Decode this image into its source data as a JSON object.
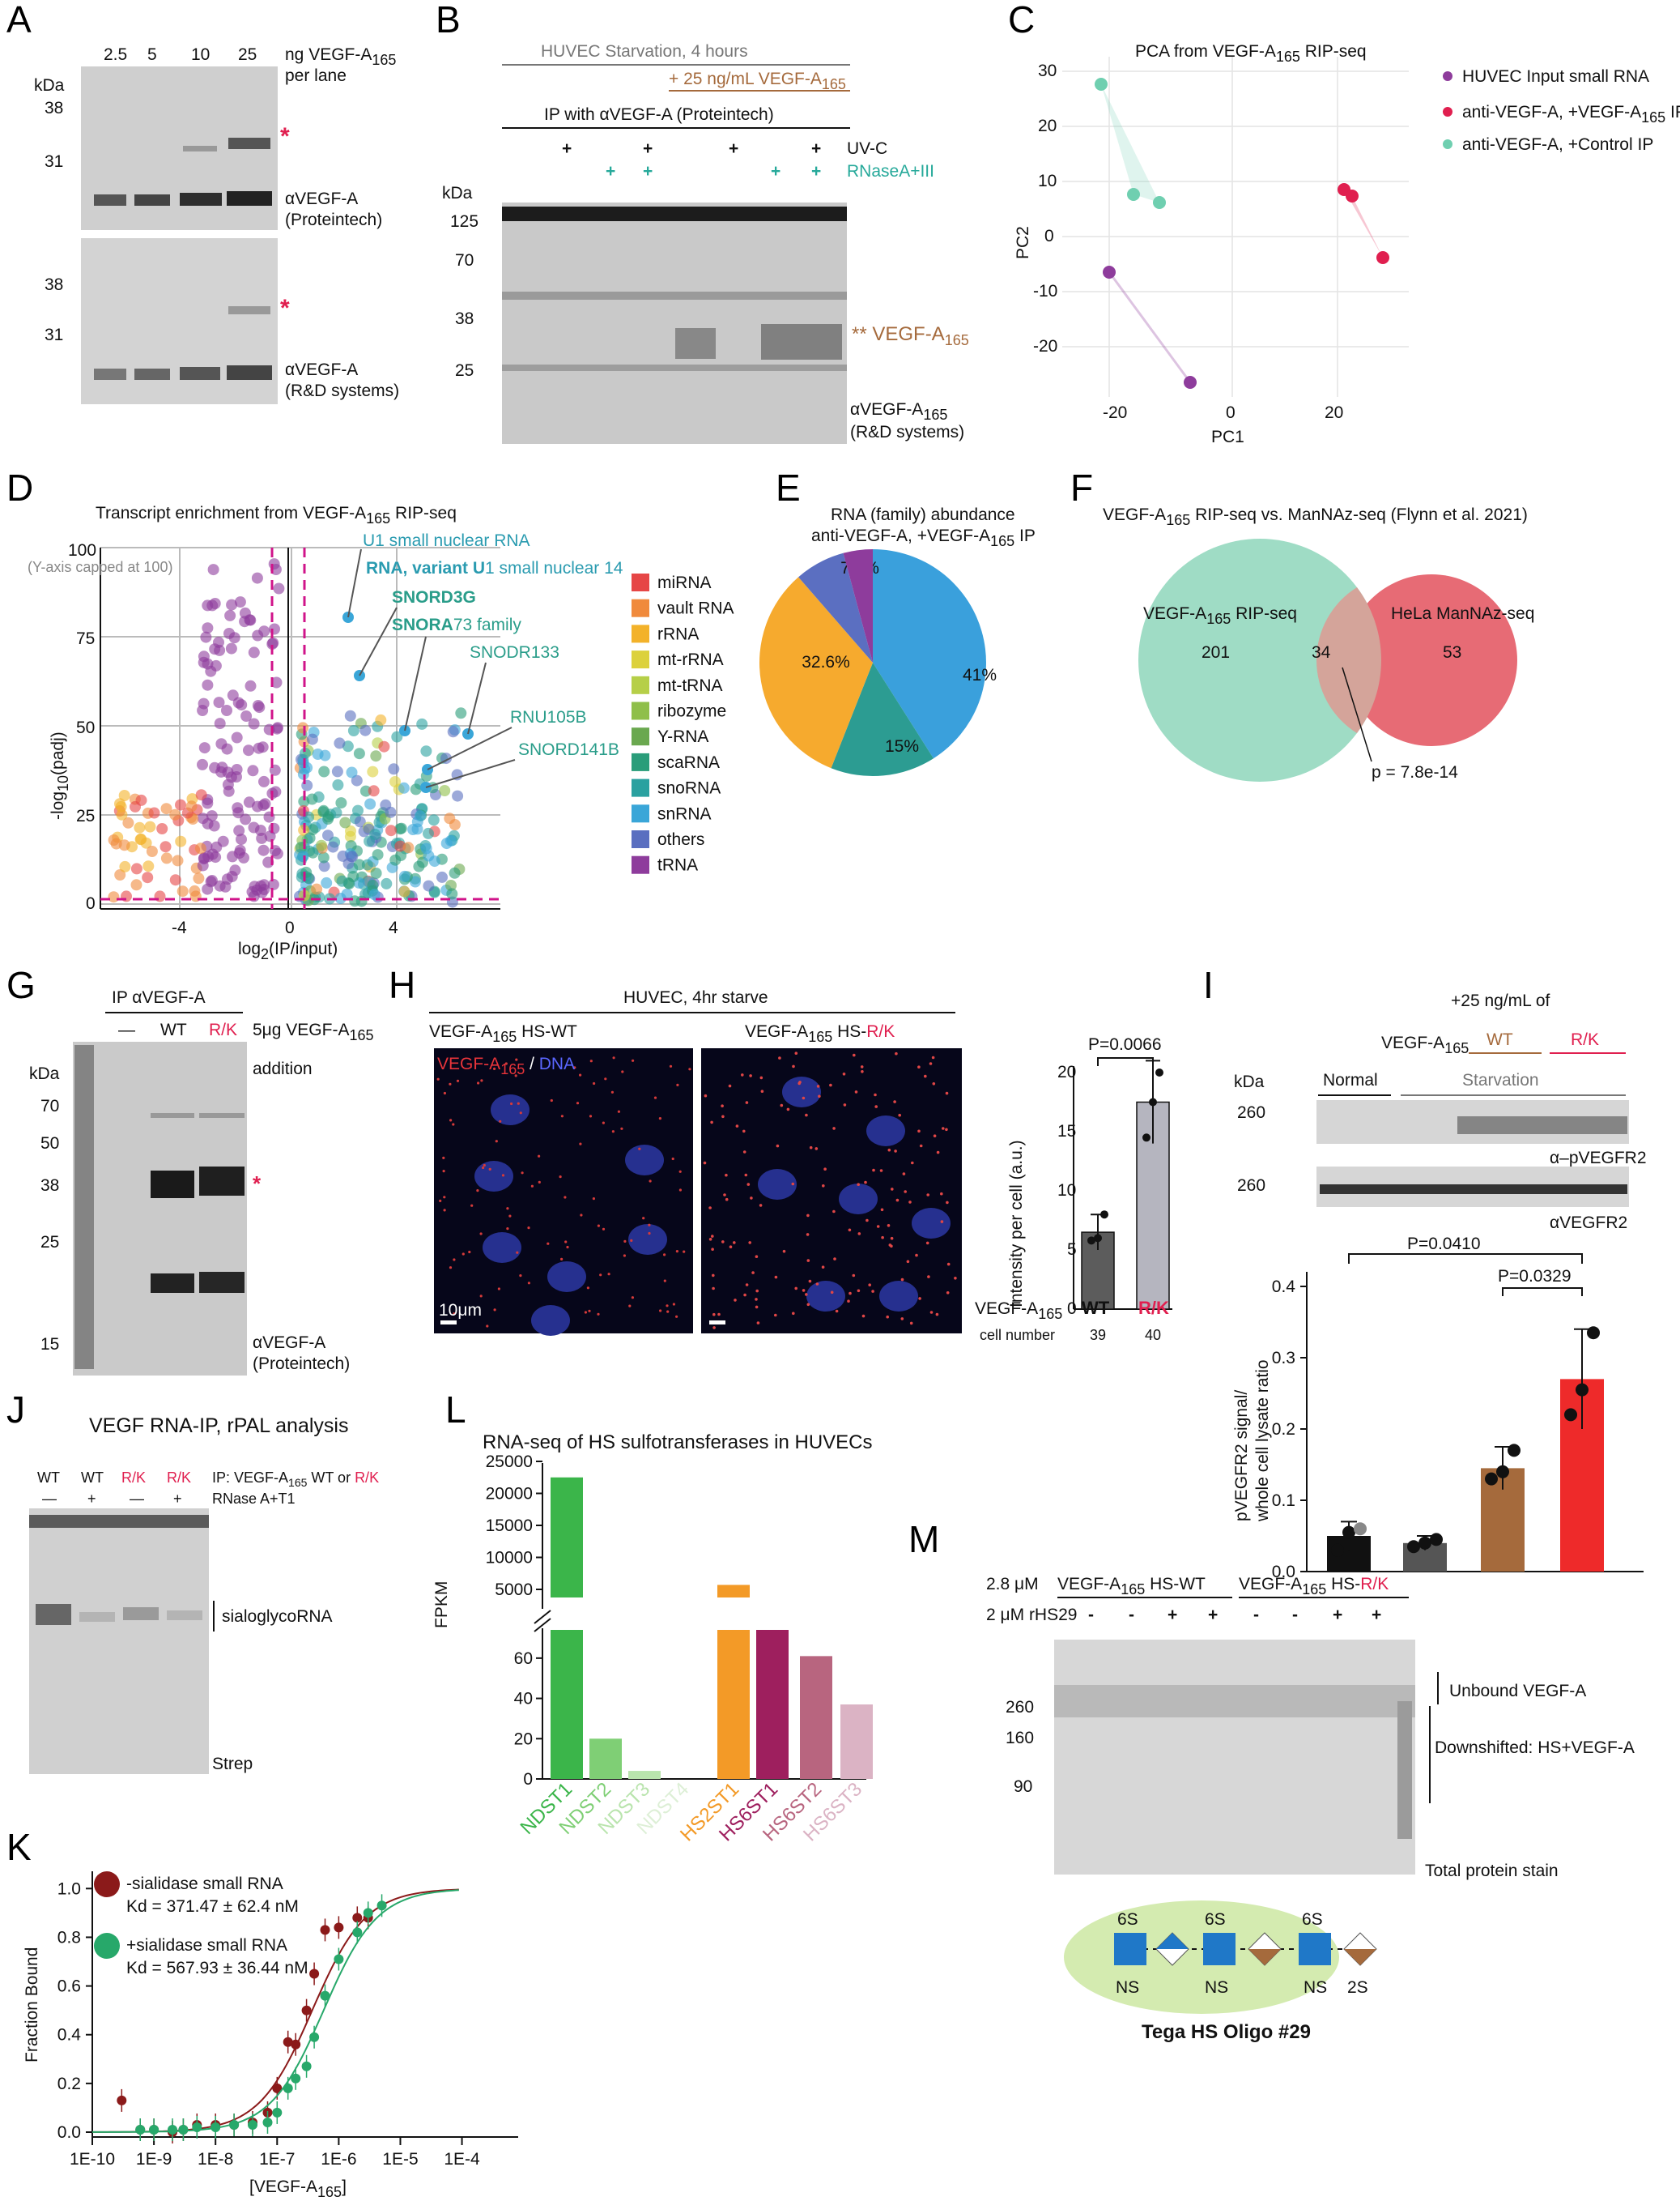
{
  "colors": {
    "purple": "#8e3c9c",
    "red": "#e01f4f",
    "teal": "#6fcfb0",
    "brown": "#a56a3c",
    "blot_bg": "#d2d2d2",
    "magenta": "#d0148a",
    "venn_green": "#9fdcc5",
    "venn_red": "#e76b75",
    "wt_bar": "#5c5c5c",
    "rk_bar": "#b5b5bf",
    "green_dark": "#3bb54a",
    "orange": "#f39a27",
    "plum": "#9e1f5e",
    "mauve": "#c07090",
    "pink_light": "#e2b7c8"
  },
  "panels": {
    "A": {
      "label": "A",
      "lanes": [
        "2.5",
        "5",
        "10",
        "25"
      ],
      "lane_unit": "ng VEGF-A",
      "lane_unit_sub": "165",
      "lane_unit2": "per lane",
      "kda": "kDa",
      "m38": "38",
      "m31": "31",
      "antibody1": "αVEGF-A",
      "antibody1_src": "(Proteintech)",
      "antibody2": "αVEGF-A",
      "antibody2_src": "(R&D systems)",
      "star": "*"
    },
    "B": {
      "label": "B",
      "header": "HUVEC Starvation, 4 hours",
      "vegf_add": "+ 25 ng/mL VEGF-A",
      "ip": "IP with αVEGF-A (Proteintech)",
      "uvc": "UV-C",
      "rnase": "RNaseA+III",
      "plus": "+",
      "kda": "kDa",
      "markers": [
        "125",
        "70",
        "38",
        "25"
      ],
      "band_label": "** VEGF-A",
      "band_sub": "165",
      "antibody": "αVEGF-A",
      "antibody_sub": "165",
      "antibody_src": "(R&D systems)"
    },
    "C": {
      "label": "C",
      "title": "PCA from VEGF-A",
      "title_sub": "165",
      "title_end": " RIP-seq",
      "xlabel": "PC1",
      "ylabel": "PC2",
      "yticks": [
        "30",
        "20",
        "10",
        "0",
        "-10",
        "-20"
      ],
      "xticks": [
        "-20",
        "0",
        "20"
      ],
      "legend": [
        {
          "text": "HUVEC Input small RNA",
          "color": "#8e3c9c"
        },
        {
          "text": "anti-VEGF-A, +VEGF-A",
          "sub": "165",
          "end": " IP",
          "color": "#e01f4f"
        },
        {
          "text": "anti-VEGF-A, +Control IP",
          "color": "#6fcfb0"
        }
      ]
    },
    "D": {
      "label": "D",
      "title": "Transcript enrichment from VEGF-A",
      "title_sub": "165",
      "title_end": " RIP-seq",
      "cap_note": "(Y-axis capped at 100)",
      "ylabel": "-log",
      "ylabel_sub": "10",
      "ylabel_end": "(padj)",
      "xlabel": "log",
      "xlabel_sub": "2",
      "xlabel_end": "(IP/input)",
      "yticks": [
        "100",
        "75",
        "50",
        "25",
        "0"
      ],
      "xticks": [
        "-4",
        "0",
        "4"
      ],
      "annotations": [
        "U1 small nuclear RNA",
        "RNA, variant U",
        "1 small nuclear 14",
        "SNORD3G",
        "SNORA",
        "73 family",
        "SNODR133",
        "RNU105B",
        "SNORD141B"
      ],
      "legend": [
        {
          "text": "miRNA",
          "color": "#e64646"
        },
        {
          "text": "vault RNA",
          "color": "#f08a3c"
        },
        {
          "text": "rRNA",
          "color": "#f3b22a"
        },
        {
          "text": "mt-rRNA",
          "color": "#dcd13c"
        },
        {
          "text": "mt-tRNA",
          "color": "#b6cf48"
        },
        {
          "text": "ribozyme",
          "color": "#8fbf4a"
        },
        {
          "text": "Y-RNA",
          "color": "#6aa84f"
        },
        {
          "text": "scaRNA",
          "color": "#2a9d7a"
        },
        {
          "text": "snoRNA",
          "color": "#2aa1a0"
        },
        {
          "text": "snRNA",
          "color": "#3aa6d8"
        },
        {
          "text": "others",
          "color": "#5a6fc0"
        },
        {
          "text": "tRNA",
          "color": "#8e3c9c"
        }
      ]
    },
    "E": {
      "label": "E",
      "title1": "RNA (family) abundance",
      "title2": "anti-VEGF-A, +VEGF-A",
      "title2_sub": "165",
      "title2_end": " IP",
      "chart_data": {
        "type": "pie",
        "slices": [
          {
            "label": "41%",
            "value": 41,
            "color": "#3aa0dc"
          },
          {
            "label": "15%",
            "value": 15,
            "color": "#2c9c92"
          },
          {
            "label": "32.6%",
            "value": 32.6,
            "color": "#f6aa2e"
          },
          {
            "label": "7.2%",
            "value": 7.2,
            "color": "#5b6fc1"
          },
          {
            "label": "",
            "value": 4.2,
            "color": "#8e3c9c"
          }
        ]
      }
    },
    "F": {
      "label": "F",
      "title": "VEGF-A",
      "title_sub": "165",
      "title_end": " RIP-seq vs. ManNAz-seq (Flynn et al. 2021)",
      "set1": "VEGF-A",
      "set1_sub": "165",
      "set1_end": " RIP-seq",
      "set2": "HeLa ManNAz-seq",
      "n1": "201",
      "n12": "34",
      "n2": "53",
      "pval": "p = 7.8e-14"
    },
    "G": {
      "label": "G",
      "ip": "IP αVEGF-A",
      "lanes": [
        "—",
        "WT",
        "R/K"
      ],
      "addition": "5μg VEGF-A",
      "addition_sub": "165",
      "addition2": "addition",
      "kda": "kDa",
      "markers": [
        "70",
        "50",
        "38",
        "25",
        "15"
      ],
      "star": "*",
      "antibody": "αVEGF-A",
      "antibody_src": "(Proteintech)"
    },
    "H": {
      "label": "H",
      "title": "HUVEC, 4hr starve",
      "cond1": "VEGF-A",
      "cond1_sub": "165",
      "cond1_end": " HS-WT",
      "cond2": "VEGF-A",
      "cond2_sub": "165",
      "cond2_end": " HS-",
      "cond2_rk": "R/K",
      "stain1": "VEGF-A",
      "stain1_sub": "165",
      "stain_sep": " / ",
      "stain2": "DNA",
      "scale": "10μm",
      "pval": "P=0.0066",
      "ylabel": "Intensity per cell (a.u.)",
      "yticks": [
        "20",
        "15",
        "10",
        "5",
        "0"
      ],
      "xcats": [
        "WT",
        "R/K"
      ],
      "xrow": "VEGF-A",
      "xrow_sub": "165",
      "cellrow": "cell number",
      "cells": [
        "39",
        "40"
      ],
      "chart_data": {
        "type": "bar",
        "categories": [
          "WT",
          "R/K"
        ],
        "values": [
          6.5,
          17.5
        ],
        "errors": [
          1.5,
          3.5
        ],
        "points": [
          [
            5.8,
            6.0,
            8.0
          ],
          [
            14.5,
            17.5,
            20.0
          ]
        ],
        "ylim": [
          0,
          25
        ]
      }
    },
    "I": {
      "label": "I",
      "add_title": "+25 ng/mL of",
      "vegf": "VEGF-A",
      "vegf_sub": "165",
      "wt": "WT",
      "rk": "R/K",
      "normal": "Normal",
      "starv": "Starvation",
      "kda": "kDa",
      "m260": "260",
      "ab1": "α–pVEGFR2",
      "ab2": "αVEGFR2",
      "p1": "P=0.0410",
      "p2": "P=0.0329",
      "ylabel1": "pVEGFR2 signal/",
      "ylabel2": "whole cell lysate ratio",
      "yticks": [
        "0.4",
        "0.3",
        "0.2",
        "0.1",
        "0.0"
      ],
      "chart_data": {
        "type": "bar",
        "values": [
          0.05,
          0.04,
          0.145,
          0.27
        ],
        "errors": [
          0.02,
          0.01,
          0.03,
          0.07
        ],
        "points": [
          [
            0.03,
            0.055,
            0.06
          ],
          [
            0.035,
            0.04,
            0.045
          ],
          [
            0.13,
            0.14,
            0.17
          ],
          [
            0.22,
            0.255,
            0.335
          ]
        ],
        "ylim": [
          0,
          0.45
        ]
      }
    },
    "J": {
      "label": "J",
      "title": "VEGF RNA-IP, rPAL analysis",
      "lanes": [
        "WT",
        "WT",
        "R/K",
        "R/K"
      ],
      "rnase": [
        "—",
        "+",
        "—",
        "+"
      ],
      "ip_note": "IP: VEGF-A",
      "ip_sub": "165",
      "ip_end": " WT or ",
      "ip_rk": "R/K",
      "rnase_note": "RNase A+T1",
      "band": "sialoglycoRNA",
      "strep": "Strep"
    },
    "K": {
      "label": "K",
      "legend1": "-sialidase small RNA",
      "kd1": "Kd = 371.47 ± 62.4 nM",
      "legend2": "+sialidase small RNA",
      "kd2": "Kd = 567.93 ± 36.44 nM",
      "ylabel": "Fraction Bound",
      "xlabel": "[VEGF-A",
      "xlabel_sub": "165",
      "xlabel_end": "]",
      "yticks": [
        "1.0",
        "0.8",
        "0.6",
        "0.4",
        "0.2",
        "0.0"
      ],
      "xticks": [
        "1E-10",
        "1E-9",
        "1E-8",
        "1E-7",
        "1E-6",
        "1E-5",
        "1E-4"
      ],
      "chart_data": {
        "type": "scatter",
        "series": [
          {
            "color": "#8b1a1a",
            "kd": 3.7147e-07,
            "x": [
              3e-10,
              6e-10,
              1e-09,
              2e-09,
              3e-09,
              5e-09,
              1e-08,
              2e-08,
              4e-08,
              7e-08,
              1e-07,
              1.5e-07,
              2e-07,
              3e-07,
              4e-07,
              6e-07,
              1e-06,
              2e-06,
              3e-06
            ],
            "y": [
              0.13,
              0.01,
              0.01,
              0.0,
              0.01,
              0.03,
              0.03,
              0.03,
              0.04,
              0.08,
              0.18,
              0.37,
              0.36,
              0.5,
              0.65,
              0.83,
              0.84,
              0.88,
              0.88
            ]
          },
          {
            "color": "#27a86a",
            "kd": 5.6793e-07,
            "x": [
              6e-10,
              1e-09,
              2e-09,
              3e-09,
              5e-09,
              1e-08,
              2e-08,
              4e-08,
              7e-08,
              1e-07,
              1.5e-07,
              2e-07,
              3e-07,
              4e-07,
              6e-07,
              1e-06,
              2e-06,
              3e-06,
              5e-06
            ],
            "y": [
              0.01,
              0.01,
              0.01,
              0.01,
              0.02,
              0.02,
              0.03,
              0.03,
              0.04,
              0.08,
              0.18,
              0.22,
              0.27,
              0.39,
              0.56,
              0.71,
              0.82,
              0.9,
              0.93
            ]
          }
        ],
        "xlim": [
          1e-10,
          0.0001
        ],
        "ylim": [
          0,
          1
        ]
      }
    },
    "L": {
      "label": "L",
      "title": "RNA-seq of HS sulfotransferases in HUVECs",
      "ylabel": "FPKM",
      "yticks_top": [
        "25000",
        "20000",
        "15000",
        "10000",
        "5000"
      ],
      "yticks_bot": [
        "60",
        "40",
        "20",
        "0"
      ],
      "chart_data": {
        "type": "bar",
        "categories": [
          "NDST1",
          "NDST2",
          "NDST3",
          "NDST4",
          "HS2ST1",
          "HS6ST1",
          "HS6ST2",
          "HS6ST3"
        ],
        "values": [
          22500,
          20,
          4,
          0,
          5700,
          2800,
          61,
          37
        ],
        "colors": [
          "#3bb54a",
          "#7fcf75",
          "#b9e4ad",
          "#ddefd6",
          "#f39a27",
          "#9e1f5e",
          "#b8657f",
          "#dbb3c4"
        ]
      }
    },
    "M": {
      "label": "M",
      "conc1": "2.8 μM",
      "conc2": "2 μM rHS29",
      "cond1": "VEGF-A",
      "cond1_sub": "165",
      "cond1_end": " HS-WT",
      "cond2": "VEGF-A",
      "cond2_sub": "165",
      "cond2_end": " HS-",
      "cond2_rk": "R/K",
      "signs": [
        "-",
        "-",
        "+",
        "+",
        "-",
        "-",
        "+",
        "+"
      ],
      "markers": [
        "260",
        "160",
        "90"
      ],
      "unbound": "Unbound VEGF-A",
      "downshift": "Downshifted: HS+VEGF-A",
      "stain": "Total protein stain",
      "oligo": "Tega HS Oligo #29",
      "mods": [
        "6S",
        "6S",
        "6S"
      ],
      "mods_bot": [
        "NS",
        "NS",
        "NS",
        "2S"
      ]
    }
  }
}
